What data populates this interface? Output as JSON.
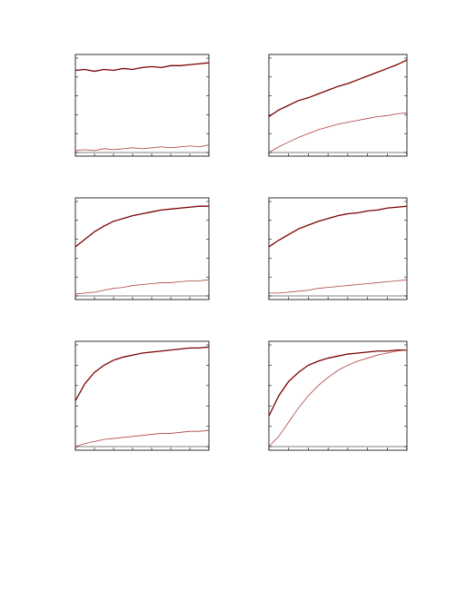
{
  "chart_data": [
    {
      "type": "line",
      "x": [
        0,
        1,
        2,
        3,
        4,
        5,
        6,
        7,
        8,
        9,
        10,
        11,
        12,
        13,
        14
      ],
      "xlim": [
        0,
        14
      ],
      "ylim": [
        0,
        1
      ],
      "xticks": [
        0,
        2,
        4,
        6,
        8,
        10,
        12,
        14
      ],
      "yticks": [
        0,
        0.2,
        0.4,
        0.6,
        0.8,
        1
      ],
      "series": [
        {
          "color": "#7a0000",
          "values": [
            0.87,
            0.88,
            0.86,
            0.88,
            0.87,
            0.89,
            0.88,
            0.9,
            0.91,
            0.9,
            0.92,
            0.92,
            0.93,
            0.94,
            0.95
          ]
        },
        {
          "color": "#b04040",
          "values": [
            0.02,
            0.03,
            0.02,
            0.04,
            0.03,
            0.04,
            0.05,
            0.04,
            0.05,
            0.06,
            0.05,
            0.06,
            0.07,
            0.06,
            0.08
          ]
        }
      ]
    },
    {
      "type": "line",
      "x": [
        0,
        1,
        2,
        3,
        4,
        5,
        6,
        7,
        8,
        9,
        10,
        11,
        12,
        13,
        14
      ],
      "xlim": [
        0,
        14
      ],
      "ylim": [
        0,
        1
      ],
      "xticks": [
        0,
        2,
        4,
        6,
        8,
        10,
        12,
        14
      ],
      "yticks": [
        0,
        0.2,
        0.4,
        0.6,
        0.8,
        1
      ],
      "series": [
        {
          "color": "#7a0000",
          "values": [
            0.38,
            0.45,
            0.5,
            0.55,
            0.58,
            0.62,
            0.66,
            0.7,
            0.73,
            0.77,
            0.81,
            0.85,
            0.89,
            0.93,
            0.98
          ]
        },
        {
          "color": "#b04040",
          "values": [
            0,
            0.06,
            0.11,
            0.16,
            0.2,
            0.24,
            0.27,
            0.3,
            0.32,
            0.34,
            0.36,
            0.38,
            0.39,
            0.41,
            0.42
          ]
        }
      ]
    },
    {
      "type": "line",
      "x": [
        0,
        1,
        2,
        3,
        4,
        5,
        6,
        7,
        8,
        9,
        10,
        11,
        12,
        13,
        14
      ],
      "xlim": [
        0,
        14
      ],
      "ylim": [
        0,
        1
      ],
      "xticks": [
        0,
        2,
        4,
        6,
        8,
        10,
        12,
        14
      ],
      "yticks": [
        0,
        0.2,
        0.4,
        0.6,
        0.8,
        1
      ],
      "series": [
        {
          "color": "#7a0000",
          "values": [
            0.52,
            0.6,
            0.68,
            0.74,
            0.79,
            0.82,
            0.85,
            0.87,
            0.89,
            0.91,
            0.92,
            0.93,
            0.94,
            0.95,
            0.95
          ]
        },
        {
          "color": "#b04040",
          "values": [
            0.02,
            0.03,
            0.04,
            0.06,
            0.08,
            0.09,
            0.11,
            0.12,
            0.13,
            0.14,
            0.14,
            0.15,
            0.16,
            0.16,
            0.17
          ]
        }
      ]
    },
    {
      "type": "line",
      "x": [
        0,
        1,
        2,
        3,
        4,
        5,
        6,
        7,
        8,
        9,
        10,
        11,
        12,
        13,
        14
      ],
      "xlim": [
        0,
        14
      ],
      "ylim": [
        0,
        1
      ],
      "xticks": [
        0,
        2,
        4,
        6,
        8,
        10,
        12,
        14
      ],
      "yticks": [
        0,
        0.2,
        0.4,
        0.6,
        0.8,
        1
      ],
      "series": [
        {
          "color": "#7a0000",
          "values": [
            0.52,
            0.59,
            0.65,
            0.71,
            0.75,
            0.79,
            0.82,
            0.85,
            0.87,
            0.88,
            0.9,
            0.91,
            0.93,
            0.94,
            0.95
          ]
        },
        {
          "color": "#b04040",
          "values": [
            0.03,
            0.03,
            0.04,
            0.05,
            0.06,
            0.08,
            0.09,
            0.1,
            0.11,
            0.12,
            0.13,
            0.14,
            0.15,
            0.16,
            0.17
          ]
        }
      ]
    },
    {
      "type": "line",
      "x": [
        0,
        1,
        2,
        3,
        4,
        5,
        6,
        7,
        8,
        9,
        10,
        11,
        12,
        13,
        14
      ],
      "xlim": [
        0,
        14
      ],
      "ylim": [
        0,
        1
      ],
      "xticks": [
        0,
        2,
        4,
        6,
        8,
        10,
        12,
        14
      ],
      "yticks": [
        0,
        0.2,
        0.4,
        0.6,
        0.8,
        1
      ],
      "series": [
        {
          "color": "#7a0000",
          "values": [
            0.45,
            0.62,
            0.73,
            0.8,
            0.85,
            0.88,
            0.9,
            0.92,
            0.93,
            0.94,
            0.95,
            0.96,
            0.97,
            0.97,
            0.98
          ]
        },
        {
          "color": "#b04040",
          "values": [
            0,
            0.03,
            0.05,
            0.07,
            0.08,
            0.09,
            0.1,
            0.11,
            0.12,
            0.13,
            0.13,
            0.14,
            0.15,
            0.15,
            0.16
          ]
        }
      ]
    },
    {
      "type": "line",
      "x": [
        0,
        1,
        2,
        3,
        4,
        5,
        6,
        7,
        8,
        9,
        10,
        11,
        12,
        13,
        14
      ],
      "xlim": [
        0,
        14
      ],
      "ylim": [
        0,
        1
      ],
      "xticks": [
        0,
        2,
        4,
        6,
        8,
        10,
        12,
        14
      ],
      "yticks": [
        0,
        0.2,
        0.4,
        0.6,
        0.8,
        1
      ],
      "series": [
        {
          "color": "#7a0000",
          "values": [
            0.3,
            0.5,
            0.64,
            0.73,
            0.8,
            0.84,
            0.87,
            0.89,
            0.91,
            0.92,
            0.93,
            0.94,
            0.94,
            0.95,
            0.95
          ]
        },
        {
          "color": "#b04040",
          "values": [
            0,
            0.1,
            0.24,
            0.38,
            0.5,
            0.6,
            0.68,
            0.75,
            0.8,
            0.84,
            0.87,
            0.9,
            0.92,
            0.94,
            0.95
          ]
        }
      ]
    }
  ]
}
